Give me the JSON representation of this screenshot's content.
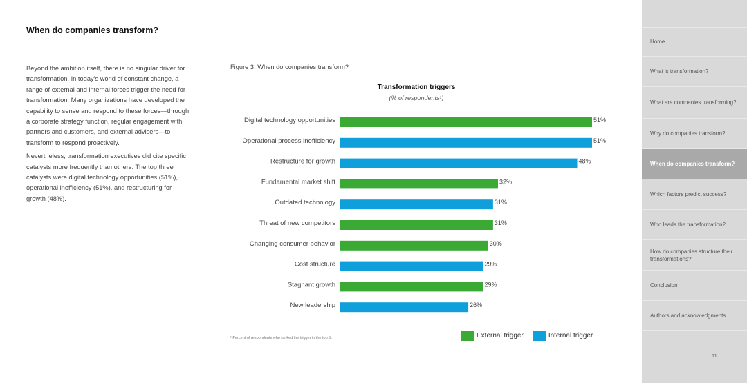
{
  "page": {
    "title": "When do companies transform?",
    "paragraphs": [
      "Beyond the ambition itself, there is no singular driver for transformation. In today's world of constant change, a range of external and internal forces trigger the need for transformation. Many organizations have developed the capability to sense and respond to these forces—through a corporate strategy function, regular engagement with partners and customers, and external advisers—to transform to respond proactively.",
      "Nevertheless, transformation executives did cite specific catalysts more frequently than others. The top three catalysts were digital technology opportunities (51%), operational inefficiency (51%), and restructuring for growth (48%)."
    ],
    "figure_caption": "Figure 3. When do companies transform?",
    "footnote": "¹ Percent of respondents who ranked the trigger in the top 5.",
    "page_number": "11"
  },
  "legend": {
    "external": {
      "label": "External trigger",
      "color": "#3aaa35"
    },
    "internal": {
      "label": "Internal trigger",
      "color": "#0fa0dc"
    }
  },
  "chart_data": {
    "type": "bar",
    "orientation": "horizontal",
    "title": "Transformation triggers",
    "subtitle": "(% of respondents¹)",
    "value_suffix": "%",
    "categories": [
      "Digital technology opportunities",
      "Operational process inefficiency",
      "Restructure for growth",
      "Fundamental market shift",
      "Outdated technology",
      "Threat of new competitors",
      "Changing consumer behavior",
      "Cost structure",
      "Stagnant growth",
      "New leadership"
    ],
    "values": [
      51,
      51,
      48,
      32,
      31,
      31,
      30,
      29,
      29,
      26
    ],
    "trigger_type": [
      "external",
      "internal",
      "internal",
      "external",
      "internal",
      "external",
      "external",
      "internal",
      "external",
      "internal"
    ],
    "xlim": [
      0,
      51
    ]
  },
  "sidebar": {
    "items": [
      {
        "label": "Home",
        "active": false
      },
      {
        "label": "What is transformation?",
        "active": false
      },
      {
        "label": "What are companies transforming?",
        "active": false
      },
      {
        "label": "Why do companies transform?",
        "active": false
      },
      {
        "label": "When do companies transform?",
        "active": true
      },
      {
        "label": "Which factors predict success?",
        "active": false
      },
      {
        "label": "Who leads the transformation?",
        "active": false
      },
      {
        "label": "How do companies structure their transformations?",
        "active": false
      },
      {
        "label": "Conclusion",
        "active": false
      },
      {
        "label": "Authors and acknowledgments",
        "active": false
      }
    ]
  }
}
